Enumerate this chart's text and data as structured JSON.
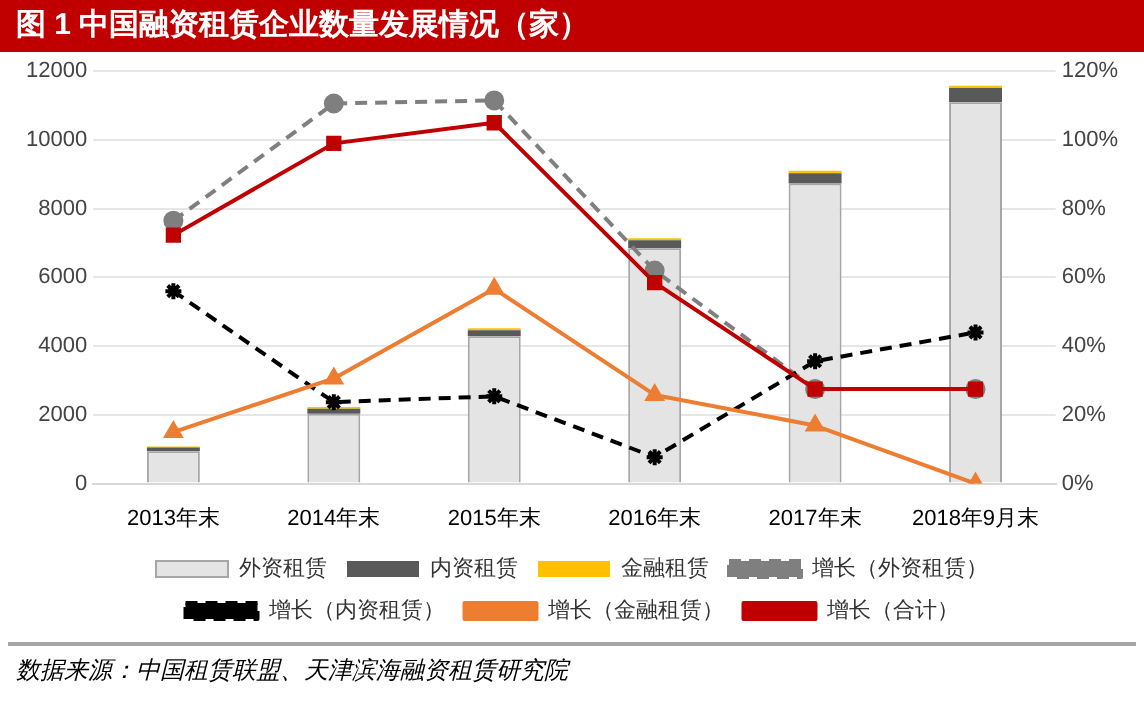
{
  "chart_data": {
    "type": "bar",
    "title": "图 1   中国融资租赁企业数量发展情况（家）",
    "categories": [
      "2013年末",
      "2014年末",
      "2015年末",
      "2016年末",
      "2017年末",
      "2018年9月末"
    ],
    "stacked": true,
    "ylim": [
      0,
      12000
    ],
    "yticks": [
      0,
      2000,
      4000,
      6000,
      8000,
      10000,
      12000
    ],
    "y2lim": [
      0,
      120
    ],
    "y2ticks": [
      {
        "value": 0,
        "label": "0%"
      },
      {
        "value": 20,
        "label": "20%"
      },
      {
        "value": 40,
        "label": "40%"
      },
      {
        "value": 60,
        "label": "60%"
      },
      {
        "value": 80,
        "label": "80%"
      },
      {
        "value": 100,
        "label": "100%"
      },
      {
        "value": 120,
        "label": "120%"
      }
    ],
    "grid": "y",
    "legend": "bottom",
    "annotations": [
      "数据来源：中国租赁联盟、天津滨海融资租赁研究院"
    ],
    "series": [
      {
        "name": "外资租赁",
        "color": "#e4e4e4",
        "values": [
          940,
          2030,
          4290,
          6850,
          8730,
          11100
        ]
      },
      {
        "name": "内资租赁",
        "color": "#595959",
        "values": [
          110,
          150,
          170,
          230,
          300,
          410
        ]
      },
      {
        "name": "金融租赁",
        "color": "#ffc000",
        "values": [
          30,
          50,
          60,
          60,
          70,
          70
        ]
      },
      {
        "name": "增长（外资租赁）",
        "type": "line",
        "axis": "y2",
        "color": "#7f7f7f",
        "marker": "circle",
        "line_style": "dashed",
        "values": [
          76.5,
          110.6,
          111.5,
          62,
          27.5,
          27.5
        ]
      },
      {
        "name": "增长（内资租赁）",
        "type": "line",
        "axis": "y2",
        "color": "#000000",
        "marker": "cross",
        "line_style": "dashed",
        "values": [
          56,
          23.7,
          25.4,
          7.7,
          35.6,
          44
        ]
      },
      {
        "name": "增长（金融租赁）",
        "type": "line",
        "axis": "y2",
        "color": "#ed7d31",
        "marker": "triangle",
        "line_style": "solid",
        "values": [
          15,
          30.6,
          56.7,
          25.8,
          16.9,
          0
        ]
      },
      {
        "name": "增长（合计）",
        "type": "line",
        "axis": "y2",
        "color": "#c00000",
        "marker": "square",
        "line_style": "solid",
        "values": [
          72.3,
          99,
          105,
          58.5,
          27.5,
          27.5
        ]
      }
    ]
  }
}
